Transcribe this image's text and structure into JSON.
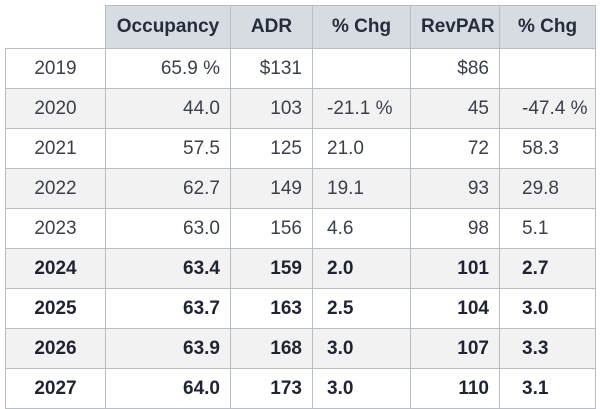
{
  "chart_data": {
    "type": "table",
    "columns": [
      "",
      "Occupancy",
      "ADR",
      "% Chg",
      "RevPAR",
      "% Chg"
    ],
    "rows": [
      {
        "year": "2019",
        "occupancy": "65.9 %",
        "adr": "$131",
        "adr_chg": "",
        "revpar": "$86",
        "revpar_chg": "",
        "shaded": false,
        "projected": false
      },
      {
        "year": "2020",
        "occupancy": "44.0",
        "adr": "103",
        "adr_chg": "-21.1 %",
        "revpar": "45",
        "revpar_chg": "-47.4 %",
        "shaded": true,
        "projected": false
      },
      {
        "year": "2021",
        "occupancy": "57.5",
        "adr": "125",
        "adr_chg": "21.0",
        "revpar": "72",
        "revpar_chg": "58.3",
        "shaded": false,
        "projected": false
      },
      {
        "year": "2022",
        "occupancy": "62.7",
        "adr": "149",
        "adr_chg": "19.1",
        "revpar": "93",
        "revpar_chg": "29.8",
        "shaded": true,
        "projected": false
      },
      {
        "year": "2023",
        "occupancy": "63.0",
        "adr": "156",
        "adr_chg": "4.6",
        "revpar": "98",
        "revpar_chg": "5.1",
        "shaded": false,
        "projected": false
      },
      {
        "year": "2024",
        "occupancy": "63.4",
        "adr": "159",
        "adr_chg": "2.0",
        "revpar": "101",
        "revpar_chg": "2.7",
        "shaded": true,
        "projected": true
      },
      {
        "year": "2025",
        "occupancy": "63.7",
        "adr": "163",
        "adr_chg": "2.5",
        "revpar": "104",
        "revpar_chg": "3.0",
        "shaded": false,
        "projected": true
      },
      {
        "year": "2026",
        "occupancy": "63.9",
        "adr": "168",
        "adr_chg": "3.0",
        "revpar": "107",
        "revpar_chg": "3.3",
        "shaded": true,
        "projected": true
      },
      {
        "year": "2027",
        "occupancy": "64.0",
        "adr": "173",
        "adr_chg": "3.0",
        "revpar": "110",
        "revpar_chg": "3.1",
        "shaded": false,
        "projected": true
      }
    ]
  },
  "colors": {
    "header_background": "#d7dbe2",
    "shaded_row_background": "#f2f2f2",
    "border": "#b9bdc6",
    "text": "#262c3a"
  }
}
